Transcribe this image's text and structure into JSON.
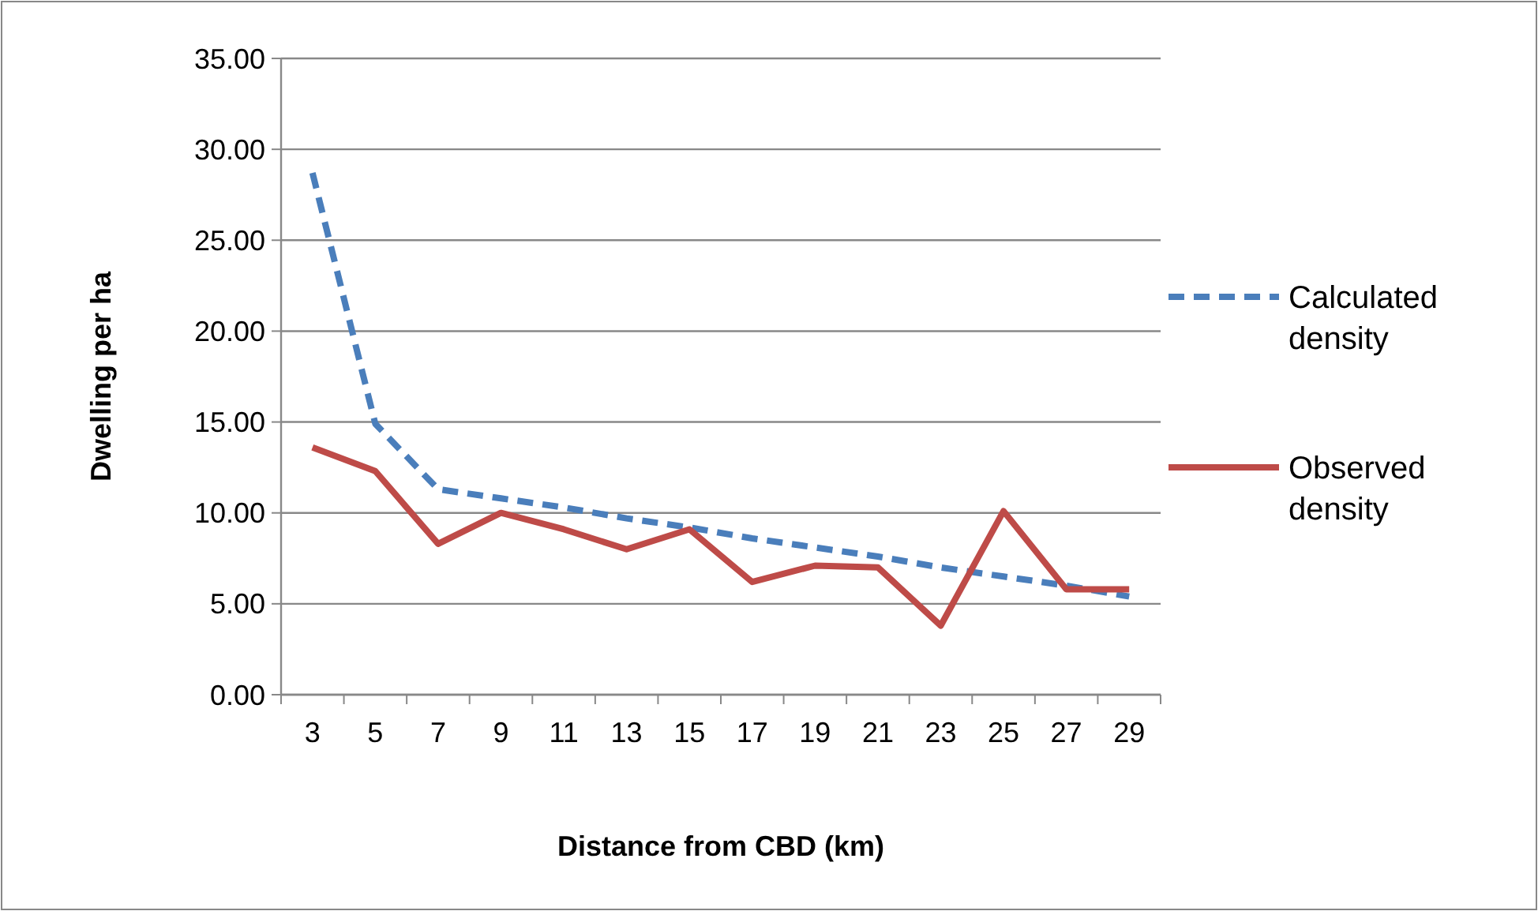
{
  "chart_data": {
    "type": "line",
    "xlabel": "Distance from CBD (km)",
    "ylabel": "Dwelling per ha",
    "categories": [
      "3",
      "5",
      "7",
      "9",
      "11",
      "13",
      "15",
      "17",
      "19",
      "21",
      "23",
      "25",
      "27",
      "29"
    ],
    "series": [
      {
        "name": "Calculated density",
        "color": "#4a7ebb",
        "line_style": "dashed",
        "values": [
          28.7,
          14.9,
          11.3,
          10.8,
          10.3,
          9.7,
          9.2,
          8.6,
          8.1,
          7.6,
          7.0,
          6.5,
          6.0,
          5.4
        ]
      },
      {
        "name": "Observed density",
        "color": "#be4b48",
        "line_style": "solid",
        "values": [
          13.6,
          12.3,
          8.3,
          10.0,
          9.1,
          8.0,
          9.1,
          6.2,
          7.1,
          7.0,
          3.8,
          10.1,
          5.8,
          5.8
        ]
      }
    ],
    "ylim": [
      0,
      35
    ],
    "yticks": [
      {
        "value": 0,
        "label": "0.00"
      },
      {
        "value": 5,
        "label": "5.00"
      },
      {
        "value": 10,
        "label": "10.00"
      },
      {
        "value": 15,
        "label": "15.00"
      },
      {
        "value": 20,
        "label": "20.00"
      },
      {
        "value": 25,
        "label": "25.00"
      },
      {
        "value": 30,
        "label": "30.00"
      },
      {
        "value": 35,
        "label": "35.00"
      }
    ],
    "grid": "y",
    "legend": "right",
    "marker": "none"
  }
}
